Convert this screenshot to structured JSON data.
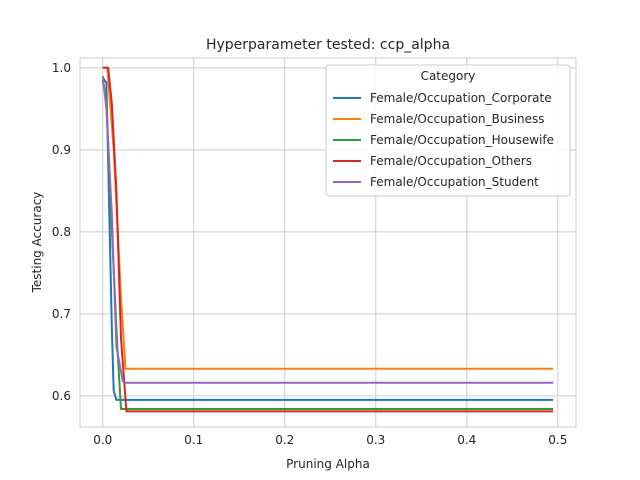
{
  "chart_data": {
    "type": "line",
    "title": "Hyperparameter tested: ccp_alpha",
    "xlabel": "Pruning Alpha",
    "ylabel": "Testing Accuracy",
    "xlim": [
      -0.025,
      0.52
    ],
    "ylim": [
      0.562,
      1.012
    ],
    "xticks": [
      0.0,
      0.1,
      0.2,
      0.3,
      0.4,
      0.5
    ],
    "xtick_labels": [
      "0.0",
      "0.1",
      "0.2",
      "0.3",
      "0.4",
      "0.5"
    ],
    "yticks": [
      0.6,
      0.7,
      0.8,
      0.9,
      1.0
    ],
    "ytick_labels": [
      "0.6",
      "0.7",
      "0.8",
      "0.9",
      "1.0"
    ],
    "grid": true,
    "legend": {
      "title": "Category",
      "position": "top-right"
    },
    "series": [
      {
        "name": "Female/Occupation_Corporate",
        "color": "#1f77b4",
        "points": [
          [
            0.0,
            0.988
          ],
          [
            0.004,
            0.982
          ],
          [
            0.01,
            0.68
          ],
          [
            0.012,
            0.606
          ],
          [
            0.015,
            0.595
          ],
          [
            0.495,
            0.595
          ]
        ]
      },
      {
        "name": "Female/Occupation_Business",
        "color": "#ff7f0e",
        "points": [
          [
            0.0,
            1.0
          ],
          [
            0.005,
            1.0
          ],
          [
            0.012,
            0.9
          ],
          [
            0.02,
            0.72
          ],
          [
            0.025,
            0.633
          ],
          [
            0.495,
            0.633
          ]
        ]
      },
      {
        "name": "Female/Occupation_Housewife",
        "color": "#2ca02c",
        "points": [
          [
            0.0,
            0.985
          ],
          [
            0.004,
            0.96
          ],
          [
            0.01,
            0.8
          ],
          [
            0.016,
            0.66
          ],
          [
            0.02,
            0.584
          ],
          [
            0.495,
            0.584
          ]
        ]
      },
      {
        "name": "Female/Occupation_Others",
        "color": "#d62728",
        "points": [
          [
            0.0,
            1.0
          ],
          [
            0.006,
            1.0
          ],
          [
            0.01,
            0.955
          ],
          [
            0.015,
            0.85
          ],
          [
            0.02,
            0.67
          ],
          [
            0.026,
            0.581
          ],
          [
            0.495,
            0.581
          ]
        ]
      },
      {
        "name": "Female/Occupation_Student",
        "color": "#9467bd",
        "points": [
          [
            0.0,
            0.99
          ],
          [
            0.004,
            0.95
          ],
          [
            0.01,
            0.82
          ],
          [
            0.015,
            0.66
          ],
          [
            0.022,
            0.618
          ],
          [
            0.025,
            0.616
          ],
          [
            0.495,
            0.616
          ]
        ]
      }
    ]
  }
}
